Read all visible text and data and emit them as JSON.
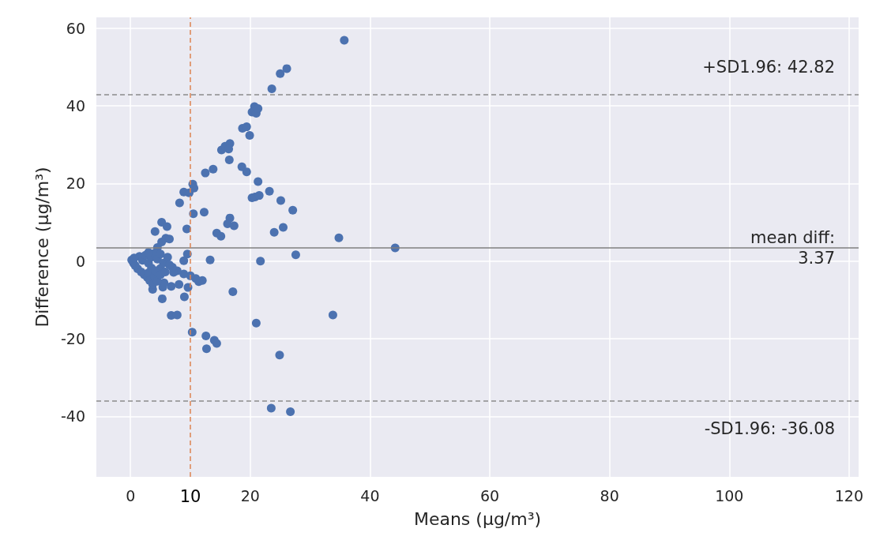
{
  "chart_data": {
    "type": "scatter",
    "xlabel": "Means (μg/m³)",
    "ylabel": "Difference (μg/m³)",
    "x": [
      35.7,
      26.1,
      25.0,
      23.6,
      20.7,
      20.3,
      21.0,
      21.3,
      18.7,
      19.4,
      19.9,
      15.2,
      15.8,
      16.6,
      16.4,
      16.5,
      12.5,
      13.8,
      18.6,
      19.4,
      21.3,
      20.3,
      20.8,
      21.5,
      23.2,
      25.1,
      27.1,
      10.4,
      10.6,
      8.9,
      9.8,
      8.2,
      10.5,
      12.3,
      9.4,
      5.2,
      6.1,
      4.1,
      5.9,
      6.5,
      5.2,
      4.5,
      14.4,
      15.1,
      16.6,
      16.2,
      17.3,
      24.0,
      25.5,
      34.8,
      44.2,
      27.6,
      21.7,
      13.3,
      9.5,
      8.9,
      17.1,
      33.8,
      21.0,
      10.3,
      12.6,
      14.0,
      14.4,
      12.7,
      24.9,
      23.5,
      26.7,
      6.8,
      7.8,
      5.3,
      9.0,
      9.6,
      8.1,
      6.8,
      5.4,
      5.6,
      3.7,
      12.0,
      11.4,
      10.9,
      10.0,
      8.9,
      7.8,
      7.2,
      7.0,
      5.0,
      0.2,
      0.5,
      0.8,
      1.2,
      1.5,
      1.8,
      2.0,
      2.3,
      2.5,
      2.8,
      3.0,
      3.0,
      3.2,
      3.5,
      3.5,
      3.7,
      4.0,
      4.0,
      4.2,
      4.5,
      4.5,
      5.0,
      5.0,
      5.5,
      5.8,
      6.2,
      6.5,
      3.0,
      0.6
    ],
    "values": [
      56.9,
      49.6,
      48.3,
      44.4,
      39.8,
      38.4,
      38.1,
      39.3,
      34.2,
      34.6,
      32.4,
      28.6,
      29.6,
      30.3,
      28.9,
      26.1,
      22.7,
      23.7,
      24.3,
      23.0,
      20.5,
      16.3,
      16.5,
      16.9,
      18.0,
      15.6,
      13.1,
      19.8,
      18.8,
      17.8,
      17.6,
      15.0,
      12.2,
      12.6,
      8.3,
      10.0,
      8.9,
      7.6,
      5.9,
      5.7,
      4.9,
      3.5,
      7.2,
      6.4,
      11.1,
      9.6,
      9.1,
      7.4,
      8.7,
      6.0,
      3.4,
      1.6,
      0.0,
      0.3,
      1.8,
      0.1,
      -7.9,
      -13.9,
      -16.0,
      -18.3,
      -19.3,
      -20.4,
      -21.2,
      -22.6,
      -24.2,
      -37.9,
      -38.8,
      -14.0,
      -13.9,
      -9.7,
      -9.2,
      -6.8,
      -6.0,
      -6.5,
      -6.7,
      -5.6,
      -7.3,
      -5.0,
      -5.3,
      -4.5,
      -3.8,
      -3.3,
      -2.5,
      -2.9,
      -1.6,
      -1.9,
      0.3,
      -0.5,
      -1.2,
      -2.0,
      1.2,
      -2.8,
      0.2,
      -3.5,
      1.5,
      -4.2,
      -0.5,
      -3.0,
      -5.0,
      -1.8,
      1.0,
      -6.0,
      -4.0,
      2.0,
      -2.5,
      -5.2,
      0.5,
      -3.5,
      1.8,
      -0.5,
      -2.8,
      1.0,
      -1.0,
      2.2,
      0.8
    ],
    "color": "#4c72b0",
    "marker": "circle",
    "xlim": [
      -5.7,
      121.6
    ],
    "xticks": [
      0,
      20,
      40,
      60,
      80,
      100,
      120
    ],
    "ylim": [
      -55.6,
      62.8
    ],
    "yticks": [
      -40,
      -20,
      0,
      20,
      40,
      60
    ],
    "grid": true,
    "ref_lines": [
      {
        "axis": "y",
        "value": 42.82,
        "label": "+SD1.96: 42.82",
        "color": "#8c8c8c",
        "line_style": "dashed"
      },
      {
        "axis": "y",
        "value": 3.37,
        "label": "mean diff:\n3.37",
        "color": "#7f7f7f",
        "line_style": "solid"
      },
      {
        "axis": "y",
        "value": -36.08,
        "label": "-SD1.96: -36.08",
        "color": "#8c8c8c",
        "line_style": "dashed"
      },
      {
        "axis": "x",
        "value": 10,
        "label": "10",
        "color": "#dd8452",
        "line_style": "dashed"
      }
    ]
  }
}
